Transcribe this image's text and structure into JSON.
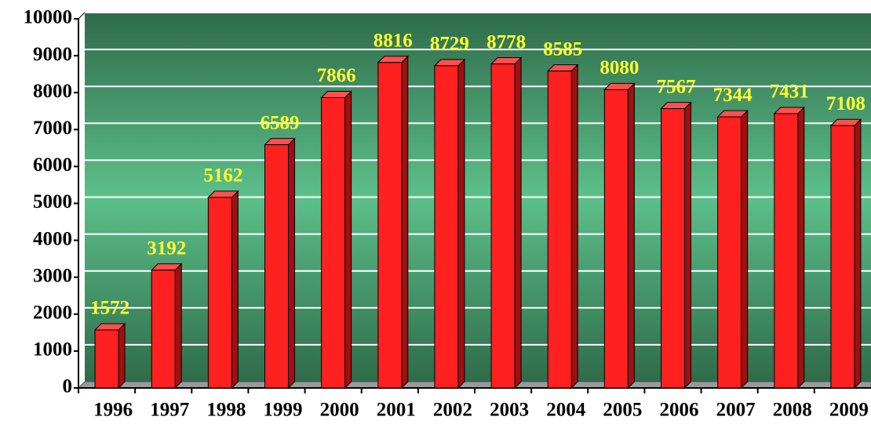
{
  "chart_data": {
    "type": "bar3d",
    "categories": [
      "1996",
      "1997",
      "1998",
      "1999",
      "2000",
      "2001",
      "2002",
      "2003",
      "2004",
      "2005",
      "2006",
      "2007",
      "2008",
      "2009"
    ],
    "values": [
      1572,
      3192,
      5162,
      6589,
      7866,
      8816,
      8729,
      8778,
      8585,
      8080,
      7567,
      7344,
      7431,
      7108
    ],
    "color": "#ff2020",
    "label_color": "#ffff33",
    "ylim": [
      0,
      10000
    ],
    "yticks": [
      0,
      1000,
      2000,
      3000,
      4000,
      5000,
      6000,
      7000,
      8000,
      9000,
      10000
    ],
    "grid": true
  }
}
